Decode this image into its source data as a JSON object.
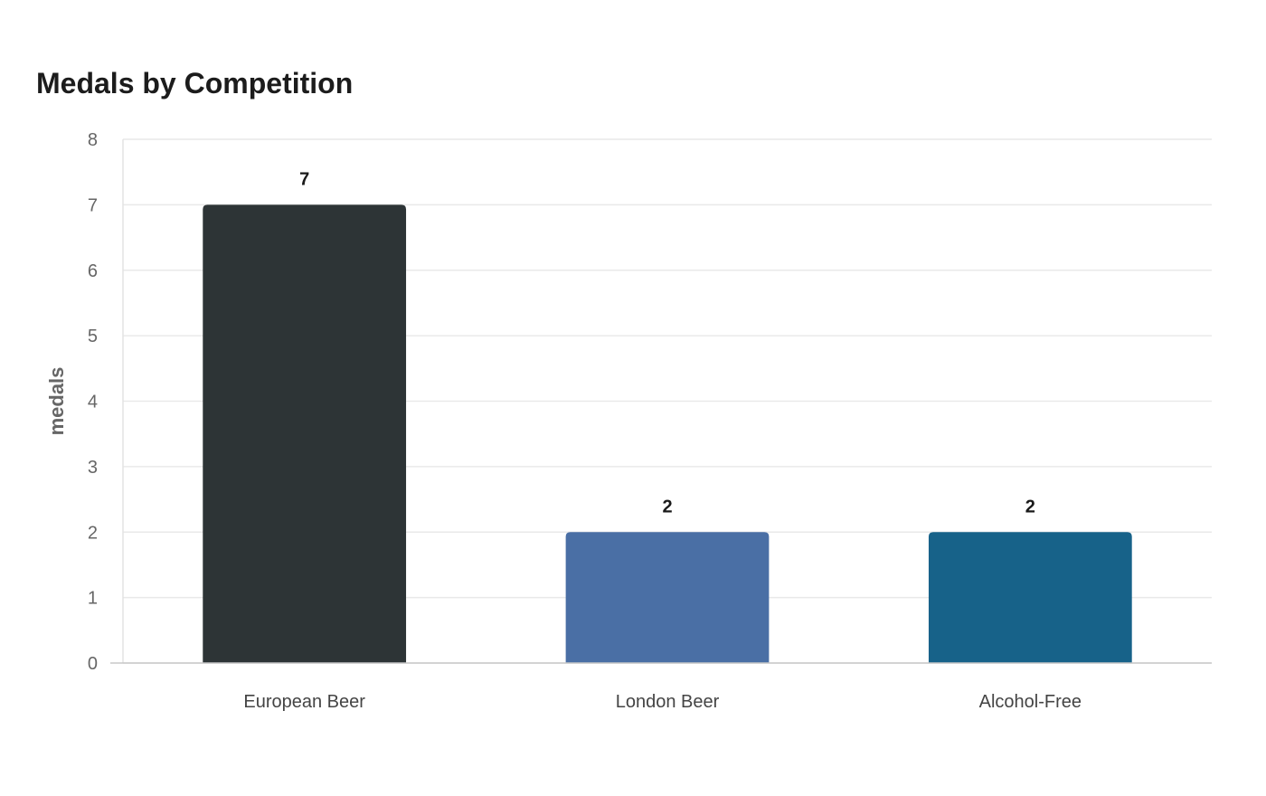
{
  "chart_data": {
    "type": "bar",
    "title": "Medals by Competition",
    "xlabel": "",
    "ylabel": "medals",
    "categories": [
      "European Beer",
      "London Beer",
      "Alcohol-Free"
    ],
    "values": [
      7,
      2,
      2
    ],
    "data_labels": [
      "7",
      "2",
      "2"
    ],
    "colors": [
      "#2d3436",
      "#4a6fa5",
      "#176289"
    ],
    "ylim": [
      0,
      8
    ],
    "yticks": [
      "0",
      "1",
      "2",
      "3",
      "4",
      "5",
      "6",
      "7",
      "8"
    ],
    "grid": true,
    "legend": "none"
  }
}
